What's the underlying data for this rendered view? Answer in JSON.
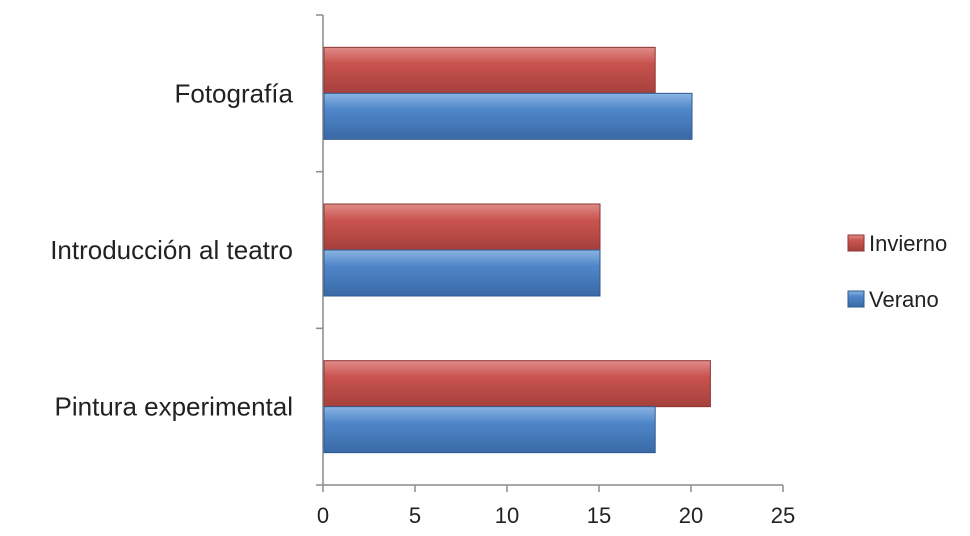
{
  "chart_data": {
    "type": "bar",
    "orientation": "horizontal",
    "categories": [
      "Fotografía",
      "Introducción al teatro",
      "Pintura experimental"
    ],
    "series": [
      {
        "name": "Invierno",
        "values": [
          18,
          15,
          21
        ],
        "color": "#c0504d"
      },
      {
        "name": "Verano",
        "values": [
          20,
          15,
          18
        ],
        "color": "#4f81bd"
      }
    ],
    "xlim": [
      0,
      25
    ],
    "xticks": [
      0,
      5,
      10,
      15,
      20,
      25
    ],
    "xtick_labels": [
      "0",
      "5",
      "10",
      "15",
      "20",
      "25"
    ],
    "grid": false,
    "legend_position": "right"
  }
}
